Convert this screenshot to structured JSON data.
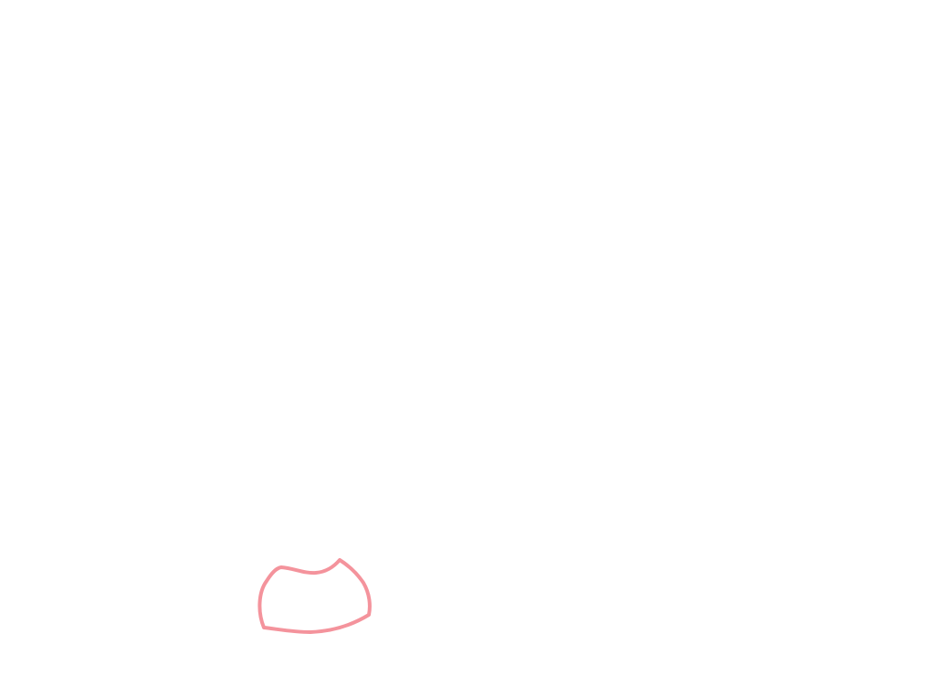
{
  "canvas": {
    "background_color": "#ffffff"
  },
  "drawing": {
    "stroke_color": "#f4939c",
    "shape": "closed freehand outline"
  }
}
